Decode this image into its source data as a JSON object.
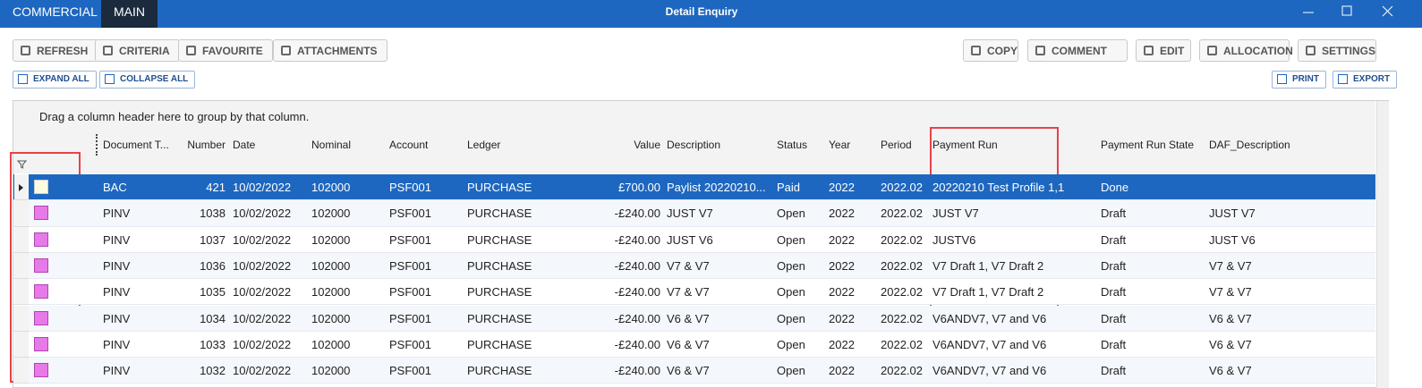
{
  "title_bar": {
    "tabs": [
      "COMMERCIAL",
      "MAIN"
    ],
    "title": "Detail Enquiry"
  },
  "toolbar": {
    "left": [
      "REFRESH",
      "CRITERIA",
      "FAVOURITE",
      "ATTACHMENTS"
    ],
    "right": [
      "COPY",
      "COMMENT",
      "EDIT",
      "ALLOCATION",
      "SETTINGS"
    ]
  },
  "subtoolbar": {
    "left": [
      "EXPAND ALL",
      "COLLAPSE ALL"
    ],
    "right": [
      "PRINT",
      "EXPORT"
    ]
  },
  "grid": {
    "group_hint": "Drag a column header here to group by that column.",
    "columns": [
      "Document T...",
      "Number",
      "Date",
      "Nominal",
      "Account",
      "Ledger",
      "Value",
      "Description",
      "Status",
      "Year",
      "Period",
      "Payment Run",
      "Payment Run State",
      "DAF_Description"
    ],
    "rows": [
      [
        "BAC",
        "421",
        "10/02/2022",
        "102000",
        "PSF001",
        "PURCHASE",
        "£700.00",
        "Paylist 20220210...",
        "Paid",
        "2022",
        "2022.02",
        "20220210 Test Profile 1,1",
        "Done",
        null
      ],
      [
        "PINV",
        "1038",
        "10/02/2022",
        "102000",
        "PSF001",
        "PURCHASE",
        "-£240.00",
        "JUST V7",
        "Open",
        "2022",
        "2022.02",
        "JUST V7",
        "Draft",
        "JUST V7"
      ],
      [
        "PINV",
        "1037",
        "10/02/2022",
        "102000",
        "PSF001",
        "PURCHASE",
        "-£240.00",
        "JUST V6",
        "Open",
        "2022",
        "2022.02",
        "JUSTV6",
        "Draft",
        "JUST V6"
      ],
      [
        "PINV",
        "1036",
        "10/02/2022",
        "102000",
        "PSF001",
        "PURCHASE",
        "-£240.00",
        "V7 & V7",
        "Open",
        "2022",
        "2022.02",
        "V7 Draft 1, V7 Draft 2",
        "Draft",
        "V7 & V7"
      ],
      [
        "PINV",
        "1035",
        "10/02/2022",
        "102000",
        "PSF001",
        "PURCHASE",
        "-£240.00",
        "V7 & V7",
        "Open",
        "2022",
        "2022.02",
        "V7 Draft 1, V7 Draft 2",
        "Draft",
        "V7 & V7"
      ],
      [
        "PINV",
        "1034",
        "10/02/2022",
        "102000",
        "PSF001",
        "PURCHASE",
        "-£240.00",
        "V6 & V7",
        "Open",
        "2022",
        "2022.02",
        "V6ANDV7, V7 and V6",
        "Draft",
        "V6 & V7"
      ],
      [
        "PINV",
        "1033",
        "10/02/2022",
        "102000",
        "PSF001",
        "PURCHASE",
        "-£240.00",
        "V6 & V7",
        "Open",
        "2022",
        "2022.02",
        "V6ANDV7, V7 and V6",
        "Draft",
        "V6 & V7"
      ],
      [
        "PINV",
        "1032",
        "10/02/2022",
        "102000",
        "PSF001",
        "PURCHASE",
        "-£240.00",
        "V6 & V7",
        "Open",
        "2022",
        "2022.02",
        "V6ANDV7, V7 and V6",
        "Draft",
        "V6 & V7"
      ]
    ]
  }
}
